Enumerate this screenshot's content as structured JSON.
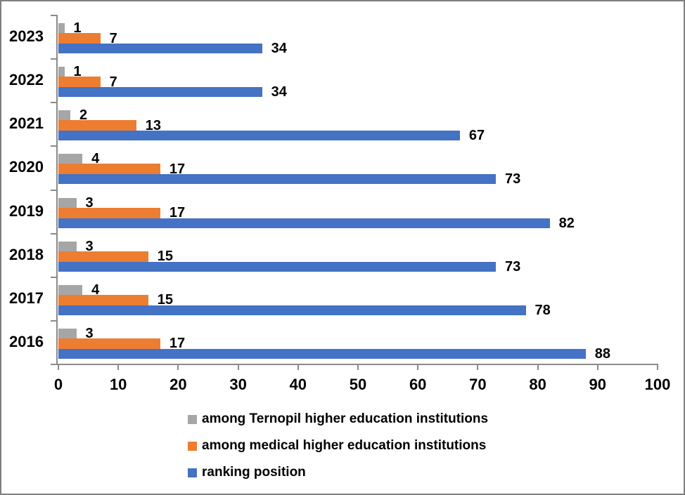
{
  "chart_data": {
    "type": "bar",
    "orientation": "horizontal",
    "title": "",
    "xlabel": "",
    "ylabel": "",
    "categories": [
      "2023",
      "2022",
      "2021",
      "2020",
      "2019",
      "2018",
      "2017",
      "2016"
    ],
    "series": [
      {
        "name": "among Ternopil higher education institutions",
        "color": "#A6A6A6",
        "values": [
          1,
          1,
          2,
          4,
          3,
          3,
          4,
          3
        ]
      },
      {
        "name": "among medical higher education institutions",
        "color": "#ED7D31",
        "values": [
          7,
          7,
          13,
          17,
          17,
          15,
          15,
          17
        ]
      },
      {
        "name": "ranking position",
        "color": "#4472C4",
        "values": [
          34,
          34,
          67,
          73,
          82,
          73,
          78,
          88
        ]
      }
    ],
    "xlim": [
      0,
      100
    ],
    "x_ticks": [
      0,
      10,
      20,
      30,
      40,
      50,
      60,
      70,
      80,
      90,
      100
    ],
    "grid": false,
    "data_labels": true,
    "legend_position": "bottom-left-of-center",
    "axis_color": "#8a8a8a",
    "background_color": "#ffffff",
    "border_color": "#7f7f7f"
  }
}
